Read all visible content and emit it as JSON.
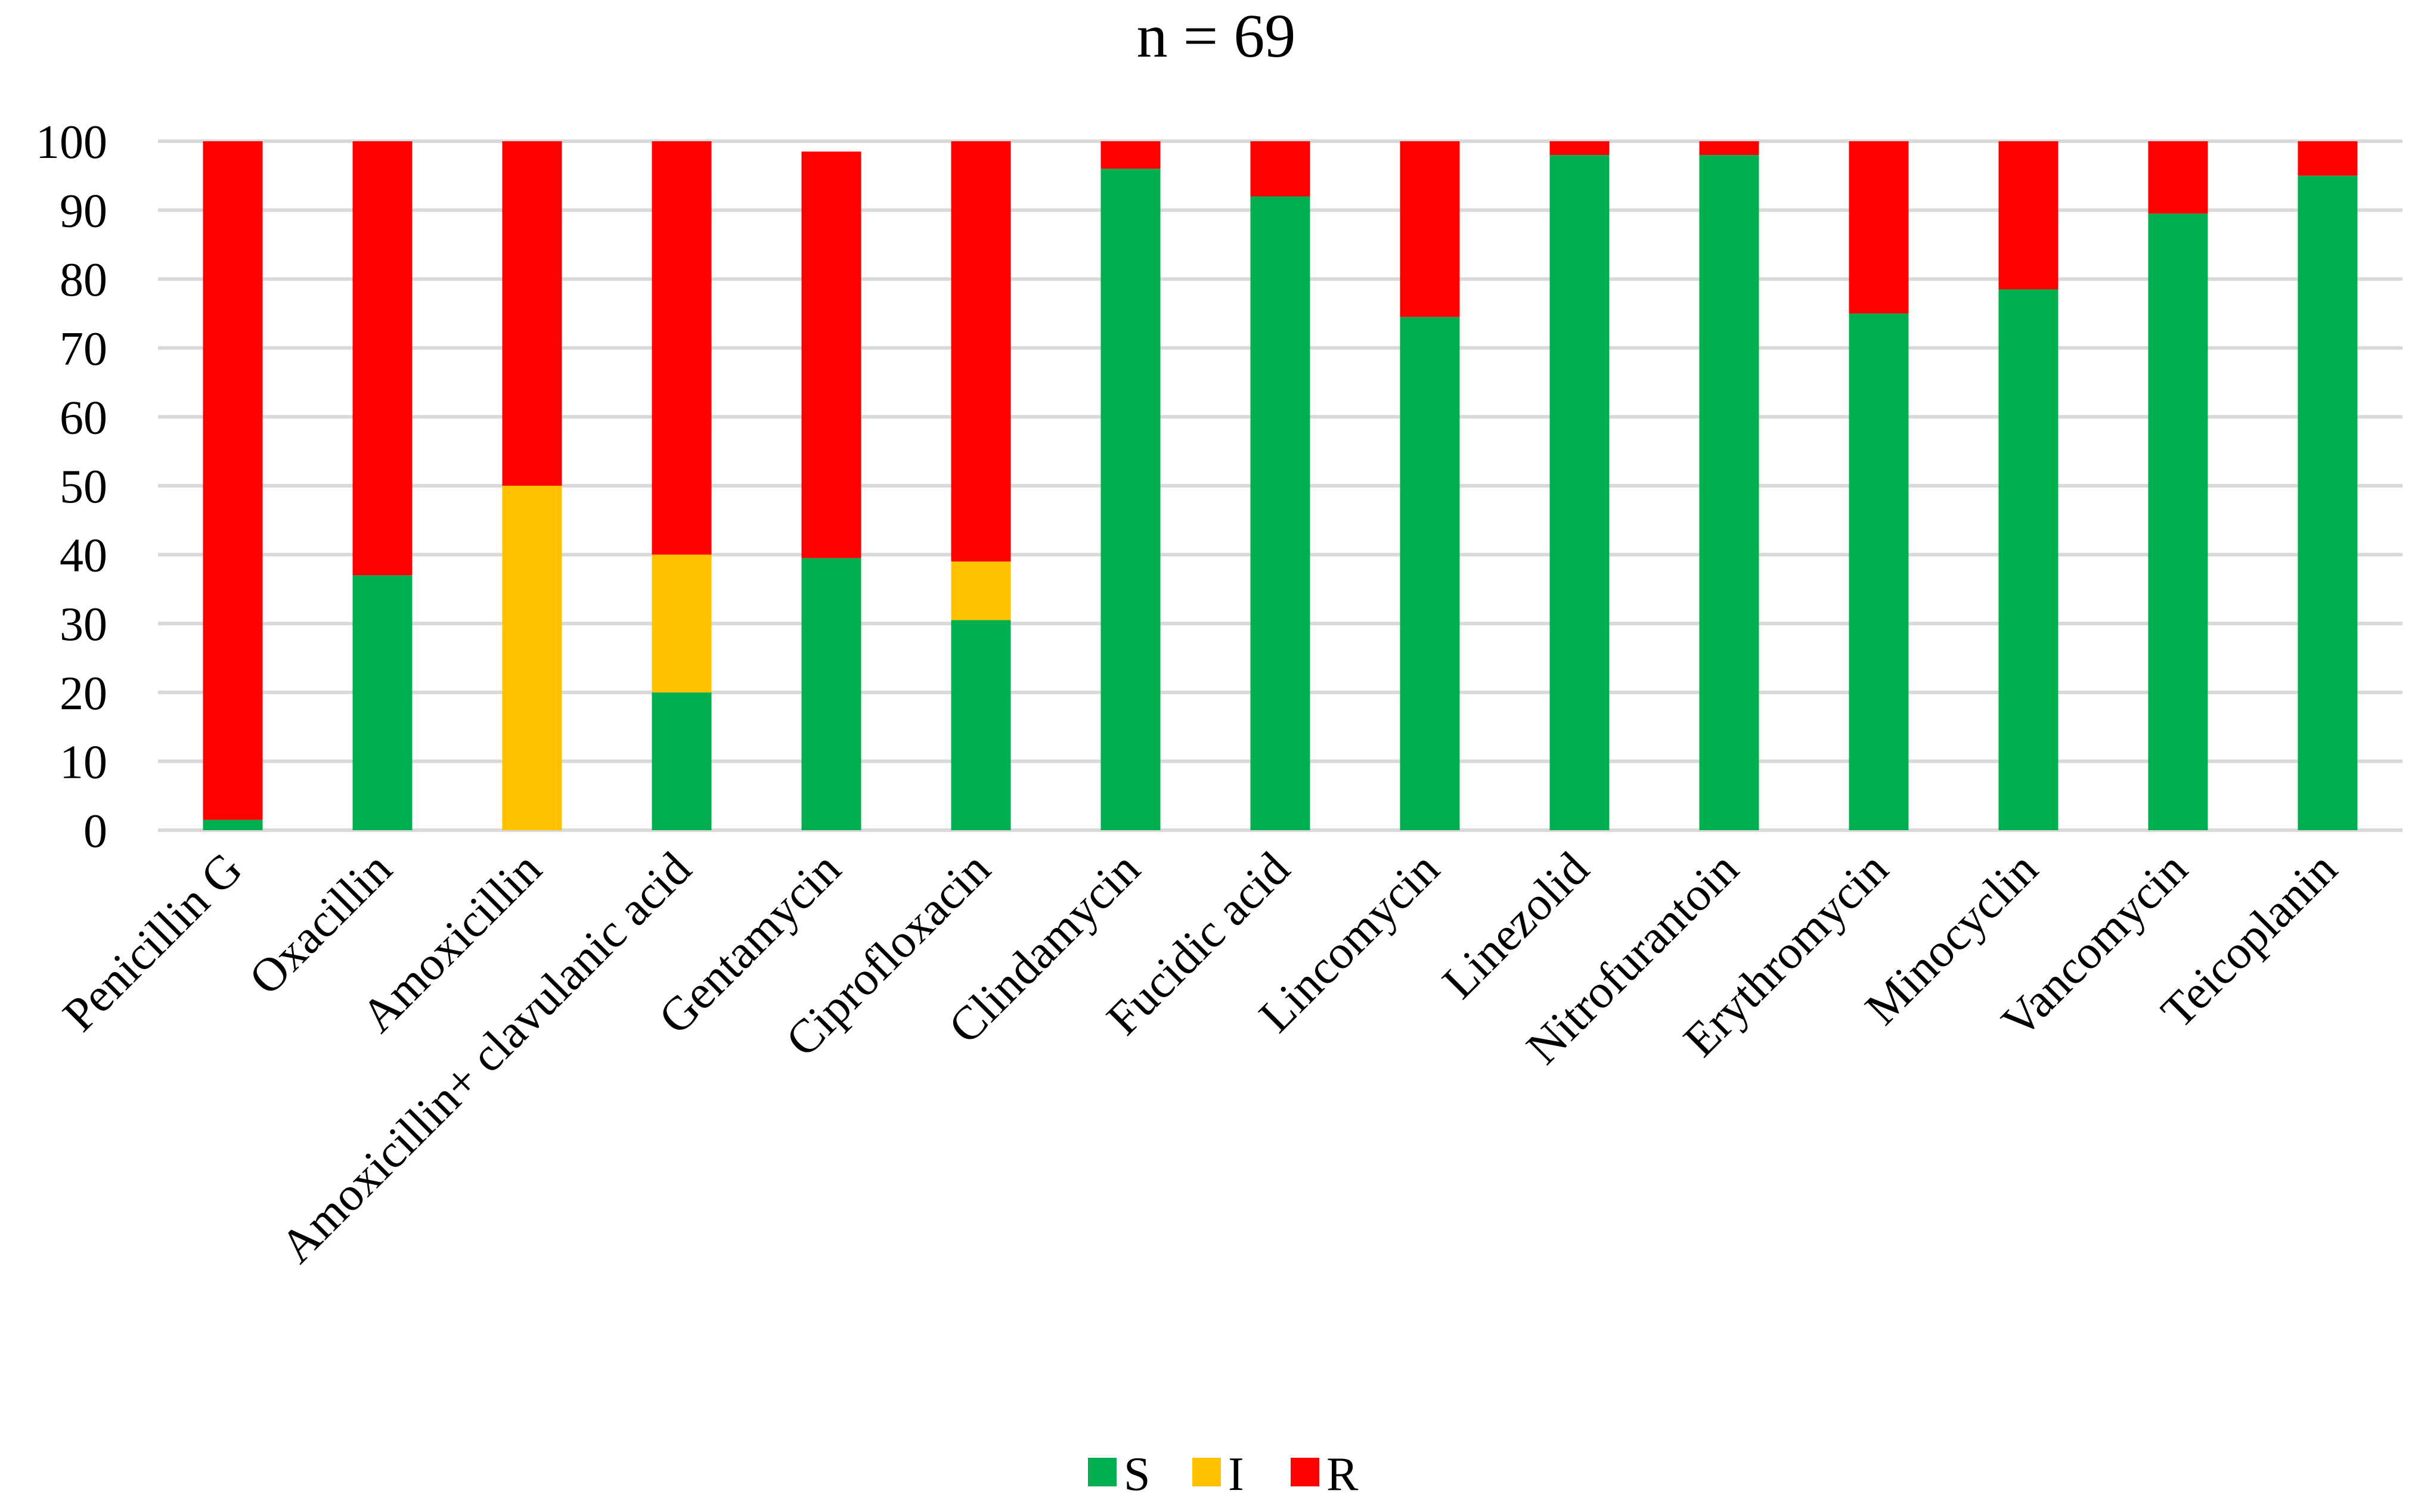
{
  "chart_data": {
    "type": "stacked-bar",
    "title": "n = 69",
    "xlabel": "",
    "ylabel": "",
    "ylim": [
      0,
      100
    ],
    "yticks": [
      0,
      10,
      20,
      30,
      40,
      50,
      60,
      70,
      80,
      90,
      100
    ],
    "grid": true,
    "legend_position": "bottom",
    "categories": [
      "Penicillin G",
      "Oxacillin",
      "Amoxicillin",
      "Amoxicillin+ clavulanic acid",
      "Gentamycin",
      "Ciprofloxacin",
      "Clindamycin",
      "Fucidic acid",
      "Lincomycin",
      "Linezolid",
      "Nitrofurantoin",
      "Erythromycin",
      "Minocyclin",
      "Vancomycin",
      "Teicoplanin"
    ],
    "series": [
      {
        "name": "S",
        "color": "#00b050",
        "values": [
          1.5,
          37,
          0,
          20,
          39.5,
          30.5,
          96,
          92,
          74.5,
          98,
          98,
          75,
          78.5,
          89.5,
          95
        ]
      },
      {
        "name": "I",
        "color": "#ffc000",
        "values": [
          0,
          0,
          50,
          20,
          0,
          8.5,
          0,
          0,
          0,
          0,
          0,
          0,
          0,
          0,
          0
        ]
      },
      {
        "name": "R",
        "color": "#ff0000",
        "values": [
          98.5,
          63,
          50,
          60,
          59,
          61,
          4,
          8,
          25.5,
          2,
          2,
          25,
          21.5,
          10.5,
          5
        ]
      }
    ]
  }
}
